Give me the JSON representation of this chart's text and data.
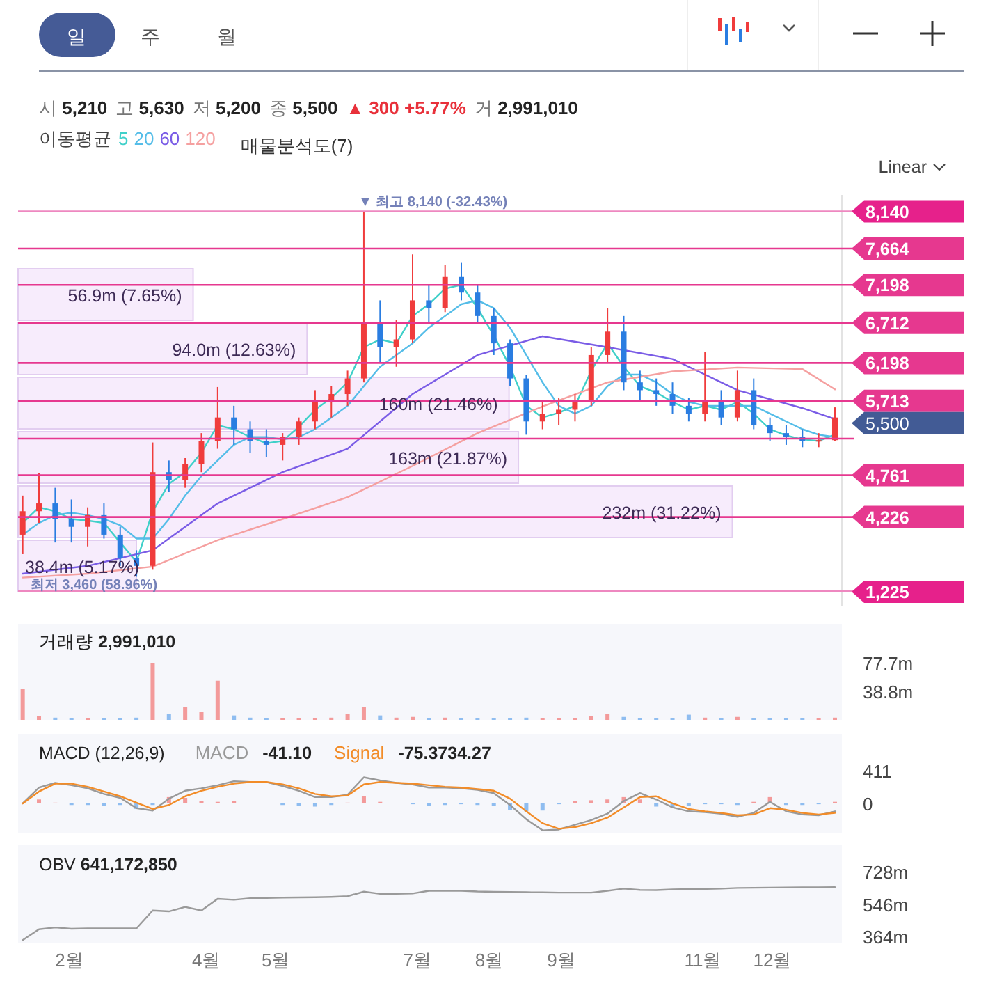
{
  "chart_data": [
    {
      "type": "candlestick",
      "x": [
        "--01-12",
        "--01-19",
        "--01-26",
        "--02-02",
        "--02-09",
        "--02-16",
        "--02-23",
        "--03-02",
        "--03-09",
        "--03-16",
        "--03-23",
        "--03-30",
        "--04-06",
        "--04-13",
        "--04-20",
        "--04-27",
        "--05-04",
        "--05-11",
        "--05-18",
        "--05-25",
        "--06-01",
        "--06-08",
        "--06-15",
        "--06-22",
        "--06-29",
        "--07-06",
        "--07-13",
        "--07-20",
        "--07-27",
        "--08-03",
        "--08-10",
        "--08-17",
        "--08-24",
        "--08-31",
        "--09-07",
        "--09-14",
        "--09-21",
        "--09-28",
        "--10-05",
        "--10-12",
        "--10-19",
        "--10-26",
        "--11-02",
        "--11-09",
        "--11-16",
        "--11-23",
        "--11-30",
        "--12-07",
        "--12-14",
        "--12-21",
        "--12-28"
      ],
      "ohlc": [
        [
          4000,
          4500,
          3750,
          4300
        ],
        [
          4300,
          4790,
          4150,
          4400
        ],
        [
          4400,
          4600,
          3900,
          4200
        ],
        [
          4200,
          4450,
          3900,
          4100
        ],
        [
          4100,
          4350,
          3850,
          4250
        ],
        [
          4250,
          4400,
          3950,
          4000
        ],
        [
          4000,
          4100,
          3600,
          3700
        ],
        [
          3700,
          3800,
          3460,
          3600
        ],
        [
          3600,
          5180,
          3550,
          4800
        ],
        [
          4800,
          4950,
          4550,
          4700
        ],
        [
          4700,
          4980,
          4600,
          4900
        ],
        [
          4900,
          5300,
          4800,
          5200
        ],
        [
          5200,
          5890,
          5100,
          5500
        ],
        [
          5500,
          5650,
          5150,
          5350
        ],
        [
          5350,
          5450,
          5050,
          5200
        ],
        [
          5200,
          5350,
          4990,
          5150
        ],
        [
          5150,
          5300,
          4950,
          5250
        ],
        [
          5250,
          5500,
          5150,
          5450
        ],
        [
          5450,
          5850,
          5350,
          5700
        ],
        [
          5700,
          5900,
          5500,
          5800
        ],
        [
          5800,
          6100,
          5650,
          6000
        ],
        [
          6000,
          8140,
          5950,
          6700
        ],
        [
          6700,
          7000,
          6200,
          6400
        ],
        [
          6400,
          6750,
          6150,
          6500
        ],
        [
          6500,
          7590,
          6450,
          7000
        ],
        [
          7000,
          7200,
          6700,
          6900
        ],
        [
          6900,
          7450,
          6850,
          7300
        ],
        [
          7300,
          7480,
          7000,
          7100
        ],
        [
          7100,
          7200,
          6700,
          6800
        ],
        [
          6800,
          6900,
          6300,
          6450
        ],
        [
          6450,
          6500,
          5900,
          6000
        ],
        [
          6000,
          6050,
          5280,
          5450
        ],
        [
          5450,
          5700,
          5350,
          5550
        ],
        [
          5550,
          5750,
          5400,
          5600
        ],
        [
          5600,
          5800,
          5450,
          5700
        ],
        [
          5700,
          6400,
          5650,
          6300
        ],
        [
          6300,
          6900,
          6200,
          6600
        ],
        [
          6600,
          6800,
          5850,
          5950
        ],
        [
          5950,
          6100,
          5700,
          5850
        ],
        [
          5850,
          6000,
          5650,
          5800
        ],
        [
          5800,
          5950,
          5550,
          5650
        ],
        [
          5650,
          5750,
          5450,
          5550
        ],
        [
          5550,
          6340,
          5450,
          5700
        ],
        [
          5700,
          5850,
          5400,
          5500
        ],
        [
          5500,
          6100,
          5450,
          5850
        ],
        [
          5850,
          6000,
          5350,
          5400
        ],
        [
          5400,
          5500,
          5200,
          5300
        ],
        [
          5300,
          5400,
          5150,
          5250
        ],
        [
          5250,
          5350,
          5120,
          5200
        ],
        [
          5200,
          5300,
          5120,
          5210
        ],
        [
          5210,
          5630,
          5200,
          5500
        ]
      ],
      "colors": [
        "#f03c3c",
        "#f03c3c",
        "#2a7de1",
        "#2a7de1",
        "#f03c3c",
        "#2a7de1",
        "#2a7de1",
        "#2a7de1",
        "#f03c3c",
        "#2a7de1",
        "#f03c3c",
        "#f03c3c",
        "#f03c3c",
        "#2a7de1",
        "#2a7de1",
        "#2a7de1",
        "#f03c3c",
        "#f03c3c",
        "#f03c3c",
        "#f03c3c",
        "#f03c3c",
        "#f03c3c",
        "#2a7de1",
        "#f03c3c",
        "#f03c3c",
        "#2a7de1",
        "#f03c3c",
        "#2a7de1",
        "#2a7de1",
        "#2a7de1",
        "#2a7de1",
        "#2a7de1",
        "#f03c3c",
        "#f03c3c",
        "#f03c3c",
        "#f03c3c",
        "#f03c3c",
        "#2a7de1",
        "#2a7de1",
        "#2a7de1",
        "#2a7de1",
        "#2a7de1",
        "#f03c3c",
        "#2a7de1",
        "#f03c3c",
        "#2a7de1",
        "#2a7de1",
        "#2a7de1",
        "#2a7de1",
        "#f03c3c",
        "#f03c3c"
      ],
      "series": [
        {
          "name": "5",
          "type": "line",
          "color": "#3fd0c9",
          "values": [
            4150,
            4350,
            4300,
            4200,
            4180,
            4150,
            3900,
            3650,
            4300,
            4650,
            4800,
            5050,
            5400,
            5350,
            5250,
            5170,
            5200,
            5380,
            5600,
            5750,
            5950,
            6400,
            6500,
            6450,
            6800,
            6950,
            7150,
            7200,
            6900,
            6550,
            6150,
            5650,
            5500,
            5560,
            5650,
            6100,
            6450,
            6150,
            5900,
            5820,
            5700,
            5600,
            5650,
            5600,
            5700,
            5550,
            5350,
            5270,
            5220,
            5200,
            5280
          ]
        },
        {
          "name": "20",
          "type": "line",
          "color": "#55bde8",
          "values": [
            4000,
            4150,
            4250,
            4280,
            4250,
            4200,
            4120,
            3950,
            3950,
            4200,
            4500,
            4750,
            4950,
            5150,
            5250,
            5250,
            5220,
            5250,
            5350,
            5500,
            5650,
            5900,
            6150,
            6300,
            6450,
            6650,
            6800,
            6950,
            7000,
            6900,
            6650,
            6300,
            5950,
            5650,
            5550,
            5650,
            5900,
            6050,
            6050,
            5950,
            5800,
            5700,
            5650,
            5650,
            5650,
            5650,
            5550,
            5450,
            5350,
            5280,
            5250
          ]
        },
        {
          "name": "60",
          "type": "line",
          "color": "#7a5ce6",
          "x": [
            "--01-12",
            "--02-09",
            "--03-09",
            "--04-06",
            "--05-04",
            "--06-01",
            "--06-29",
            "--07-27",
            "--08-24",
            "--09-21",
            "--10-19",
            "--11-16",
            "--12-14",
            "--12-28"
          ],
          "values": [
            3500,
            3600,
            3800,
            4400,
            4800,
            5100,
            5800,
            6300,
            6540,
            6400,
            6250,
            5850,
            5620,
            5480
          ]
        },
        {
          "name": "120",
          "type": "line",
          "color": "#f5a0a0",
          "x": [
            "--01-12",
            "--02-09",
            "--03-09",
            "--04-06",
            "--05-04",
            "--06-01",
            "--06-29",
            "--07-27",
            "--08-24",
            "--09-21",
            "--10-19",
            "--11-16",
            "--12-14",
            "--12-28"
          ],
          "values": [
            3450,
            3500,
            3590,
            3930,
            4200,
            4480,
            4880,
            5300,
            5640,
            5950,
            6090,
            6140,
            6120,
            5860
          ]
        }
      ],
      "legend": "top",
      "legend_title": "이동평균",
      "xlim": [
        "--01-10",
        "--12-31"
      ],
      "ylim": [
        3090,
        8350
      ],
      "tick_labels": "y",
      "ref_lines": [
        {
          "axis": "y",
          "value": 8140,
          "label": "8,140",
          "color": "#ee88c0"
        },
        {
          "axis": "y",
          "value": 7664,
          "label": "7,664",
          "color": "#e6388f"
        },
        {
          "axis": "y",
          "value": 7198,
          "label": "7,198",
          "color": "#e6388f"
        },
        {
          "axis": "y",
          "value": 6712,
          "label": "6,712",
          "color": "#e6388f"
        },
        {
          "axis": "y",
          "value": 6198,
          "label": "6,198",
          "color": "#e6388f"
        },
        {
          "axis": "y",
          "value": 5713,
          "label": "5,713",
          "color": "#e6388f"
        },
        {
          "axis": "y",
          "value": 5229,
          "label": null,
          "color": "#e6388f"
        },
        {
          "axis": "y",
          "value": 4761,
          "label": "4,761",
          "color": "#e6388f"
        },
        {
          "axis": "y",
          "value": 4226,
          "label": "4,226",
          "color": "#e6388f"
        },
        {
          "axis": "y",
          "value": 3280,
          "label": null,
          "color": "#ee88c0"
        }
      ],
      "annotations": [
        "일",
        "주",
        "월",
        "시 5,210",
        "고 5,630",
        "저 5,200",
        "종 5,500",
        "▲ 300 +5.77%",
        "거 2,991,010",
        "Linear",
        "5,500",
        "1,225",
        {
          "text": "▼ 최고 8,140 (-32.43%)",
          "x": "--06-08",
          "y": 8140
        },
        {
          "text": "최저 3,460 (58.96%)",
          "x": "--03-02",
          "y": 3460
        }
      ]
    },
    {
      "type": "bar",
      "orientation": "horizontal",
      "title": "매물분석도(7)",
      "color": "#f7ecfc",
      "categories": [
        null,
        null,
        null,
        null,
        null,
        null
      ],
      "values": [
        7.65,
        12.63,
        21.46,
        21.87,
        31.22,
        5.17
      ],
      "value_labels": [
        "56.9m (7.65%)",
        "94.0m (12.63%)",
        "160m (21.46%)",
        "163m (21.87%)",
        "232m (31.22%)",
        "38.4m (5.17%)"
      ]
    },
    {
      "type": "bar",
      "title": "거래량 2,991,010",
      "x": [
        "--01-12",
        "--01-19",
        "--01-26",
        "--02-02",
        "--02-09",
        "--02-16",
        "--02-23",
        "--03-02",
        "--03-09",
        "--03-16",
        "--03-23",
        "--03-30",
        "--04-06",
        "--04-13",
        "--04-20",
        "--04-27",
        "--05-04",
        "--05-11",
        "--05-18",
        "--05-25",
        "--06-01",
        "--06-08",
        "--06-15",
        "--06-22",
        "--06-29",
        "--07-06",
        "--07-13",
        "--07-20",
        "--07-27",
        "--08-03",
        "--08-10",
        "--08-17",
        "--08-24",
        "--08-31",
        "--09-07",
        "--09-14",
        "--09-21",
        "--09-28",
        "--10-05",
        "--10-12",
        "--10-19",
        "--10-26",
        "--11-02",
        "--11-09",
        "--11-16",
        "--11-23",
        "--11-30",
        "--12-07",
        "--12-14",
        "--12-21",
        "--12-28"
      ],
      "values": [
        42,
        5,
        3,
        2,
        2,
        2,
        2,
        3,
        77,
        8,
        17,
        11,
        53,
        6,
        3,
        2,
        2,
        2,
        2,
        3,
        8,
        17,
        6,
        3,
        4,
        2,
        3,
        2,
        2,
        2,
        2,
        3,
        2,
        2,
        2,
        5,
        8,
        4,
        2,
        2,
        2,
        7,
        3,
        2,
        4,
        2,
        2,
        2,
        2,
        2,
        3
      ],
      "colors": [
        "#f39a9a",
        "#f39a9a",
        "#8fbdf0",
        "#8fbdf0",
        "#f39a9a",
        "#8fbdf0",
        "#8fbdf0",
        "#8fbdf0",
        "#f39a9a",
        "#8fbdf0",
        "#f39a9a",
        "#f39a9a",
        "#f39a9a",
        "#8fbdf0",
        "#8fbdf0",
        "#8fbdf0",
        "#f39a9a",
        "#f39a9a",
        "#f39a9a",
        "#f39a9a",
        "#f39a9a",
        "#f39a9a",
        "#8fbdf0",
        "#f39a9a",
        "#f39a9a",
        "#8fbdf0",
        "#f39a9a",
        "#8fbdf0",
        "#8fbdf0",
        "#8fbdf0",
        "#8fbdf0",
        "#8fbdf0",
        "#f39a9a",
        "#f39a9a",
        "#f39a9a",
        "#f39a9a",
        "#f39a9a",
        "#8fbdf0",
        "#8fbdf0",
        "#8fbdf0",
        "#8fbdf0",
        "#8fbdf0",
        "#f39a9a",
        "#8fbdf0",
        "#f39a9a",
        "#8fbdf0",
        "#8fbdf0",
        "#8fbdf0",
        "#8fbdf0",
        "#f39a9a",
        "#f39a9a"
      ],
      "xlim": [
        "--01-10",
        "--12-31"
      ],
      "ylim": [
        0,
        130
      ],
      "yticks": [
        {
          "value": 38.8,
          "label": "38.8m"
        },
        {
          "value": 77.7,
          "label": "77.7m"
        }
      ],
      "tick_labels": "y"
    },
    {
      "type": "line",
      "title": "MACD (12,26,9)",
      "x": [
        "--01-12",
        "--01-19",
        "--01-26",
        "--02-02",
        "--02-09",
        "--02-16",
        "--02-23",
        "--03-02",
        "--03-09",
        "--03-16",
        "--03-23",
        "--03-30",
        "--04-06",
        "--04-13",
        "--04-20",
        "--04-27",
        "--05-04",
        "--05-11",
        "--05-18",
        "--05-25",
        "--06-01",
        "--06-08",
        "--06-15",
        "--06-22",
        "--06-29",
        "--07-06",
        "--07-13",
        "--07-20",
        "--07-27",
        "--08-03",
        "--08-10",
        "--08-17",
        "--08-24",
        "--08-31",
        "--09-07",
        "--09-14",
        "--09-21",
        "--09-28",
        "--10-05",
        "--10-12",
        "--10-19",
        "--10-26",
        "--11-02",
        "--11-09",
        "--11-16",
        "--11-23",
        "--11-30",
        "--12-07",
        "--12-14",
        "--12-21",
        "--12-28"
      ],
      "series": [
        {
          "type": "bar",
          "values": [
            0,
            50,
            10,
            -20,
            -20,
            -30,
            -20,
            -70,
            -20,
            80,
            70,
            30,
            20,
            30,
            0,
            0,
            -20,
            -30,
            -40,
            -20,
            10,
            90,
            20,
            0,
            -10,
            -30,
            -20,
            -10,
            -20,
            -30,
            -80,
            -100,
            -90,
            -10,
            30,
            40,
            50,
            80,
            50,
            -40,
            -50,
            -30,
            -10,
            -10,
            -20,
            20,
            80,
            -20,
            -20,
            -10,
            20
          ],
          "colors": [
            "#f39a9a",
            "#f39a9a",
            "#f39a9a",
            "#8fbdf0",
            "#8fbdf0",
            "#8fbdf0",
            "#8fbdf0",
            "#8fbdf0",
            "#8fbdf0",
            "#f39a9a",
            "#f39a9a",
            "#f39a9a",
            "#f39a9a",
            "#f39a9a",
            "#f39a9a",
            "#f39a9a",
            "#8fbdf0",
            "#8fbdf0",
            "#8fbdf0",
            "#8fbdf0",
            "#f39a9a",
            "#f39a9a",
            "#f39a9a",
            "#f39a9a",
            "#8fbdf0",
            "#8fbdf0",
            "#8fbdf0",
            "#8fbdf0",
            "#8fbdf0",
            "#8fbdf0",
            "#8fbdf0",
            "#8fbdf0",
            "#8fbdf0",
            "#8fbdf0",
            "#f39a9a",
            "#f39a9a",
            "#f39a9a",
            "#f39a9a",
            "#f39a9a",
            "#8fbdf0",
            "#8fbdf0",
            "#8fbdf0",
            "#8fbdf0",
            "#8fbdf0",
            "#8fbdf0",
            "#f39a9a",
            "#f39a9a",
            "#8fbdf0",
            "#8fbdf0",
            "#8fbdf0",
            "#f39a9a"
          ]
        },
        {
          "name": "MACD",
          "color": "#999999",
          "values": [
            0,
            200,
            260,
            230,
            190,
            120,
            70,
            -60,
            -90,
            60,
            160,
            190,
            230,
            280,
            270,
            270,
            220,
            160,
            80,
            80,
            110,
            330,
            290,
            260,
            240,
            200,
            200,
            190,
            170,
            130,
            -20,
            -200,
            -340,
            -330,
            -270,
            -210,
            -130,
            30,
            130,
            50,
            -50,
            -100,
            -110,
            -130,
            -170,
            -120,
            20,
            -100,
            -140,
            -150,
            -100
          ]
        },
        {
          "name": "Signal",
          "color": "#f28c28",
          "values": [
            0,
            150,
            250,
            250,
            210,
            150,
            90,
            10,
            -70,
            -20,
            90,
            160,
            210,
            250,
            270,
            270,
            240,
            190,
            120,
            90,
            100,
            240,
            270,
            260,
            250,
            230,
            210,
            200,
            180,
            160,
            60,
            -100,
            -250,
            -320,
            -300,
            -250,
            -180,
            -50,
            80,
            90,
            0,
            -70,
            -100,
            -120,
            -150,
            -140,
            -60,
            -80,
            -120,
            -140,
            -120
          ]
        }
      ],
      "annotations": [
        "-41.10",
        "-75.3734.27"
      ],
      "legend": "top left",
      "xlim": [
        "--01-10",
        "--12-31"
      ],
      "ylim": [
        -370,
        880
      ],
      "yticks": [
        0,
        411
      ],
      "tick_labels": "y"
    },
    {
      "type": "line",
      "title": "OBV 641,172,850",
      "x": [
        "--01-12",
        "--01-19",
        "--01-26",
        "--02-02",
        "--02-09",
        "--02-16",
        "--02-23",
        "--03-02",
        "--03-09",
        "--03-16",
        "--03-23",
        "--03-30",
        "--04-06",
        "--04-13",
        "--04-20",
        "--04-27",
        "--05-04",
        "--05-11",
        "--05-18",
        "--05-25",
        "--06-01",
        "--06-08",
        "--06-15",
        "--06-22",
        "--06-29",
        "--07-06",
        "--07-13",
        "--07-20",
        "--07-27",
        "--08-03",
        "--08-10",
        "--08-17",
        "--08-24",
        "--08-31",
        "--09-07",
        "--09-14",
        "--09-21",
        "--09-28",
        "--10-05",
        "--10-12",
        "--10-19",
        "--10-26",
        "--11-02",
        "--11-09",
        "--11-16",
        "--11-23",
        "--11-30",
        "--12-07",
        "--12-14",
        "--12-21",
        "--12-28"
      ],
      "series": [
        {
          "color": "#9a9a9a",
          "values": [
            345,
            405,
            415,
            408,
            410,
            410,
            410,
            410,
            510,
            505,
            530,
            510,
            575,
            570,
            578,
            580,
            582,
            583,
            584,
            586,
            590,
            615,
            603,
            603,
            605,
            620,
            620,
            620,
            616,
            614,
            613,
            612,
            611,
            610,
            610,
            610,
            620,
            632,
            625,
            624,
            628,
            630,
            630,
            632,
            636,
            637,
            638,
            639,
            640,
            640,
            641
          ]
        }
      ],
      "xlim": [
        "--01-10",
        "--12-31"
      ],
      "ylim": [
        330,
        875
      ],
      "yticks": [
        {
          "value": 364,
          "label": "364m"
        },
        {
          "value": 546,
          "label": "546m"
        },
        {
          "value": 728,
          "label": "728m"
        }
      ],
      "xticks": [
        {
          "value": "--02-01",
          "label": "2월"
        },
        {
          "value": "--04-01",
          "label": "4월"
        },
        {
          "value": "--05-01",
          "label": "5월"
        },
        {
          "value": "--07-01",
          "label": "7월"
        },
        {
          "value": "--08-01",
          "label": "8월"
        },
        {
          "value": "--09-01",
          "label": "9월"
        },
        {
          "value": "--11-01",
          "label": "11월"
        },
        {
          "value": "--12-01",
          "label": "12월"
        }
      ]
    }
  ]
}
